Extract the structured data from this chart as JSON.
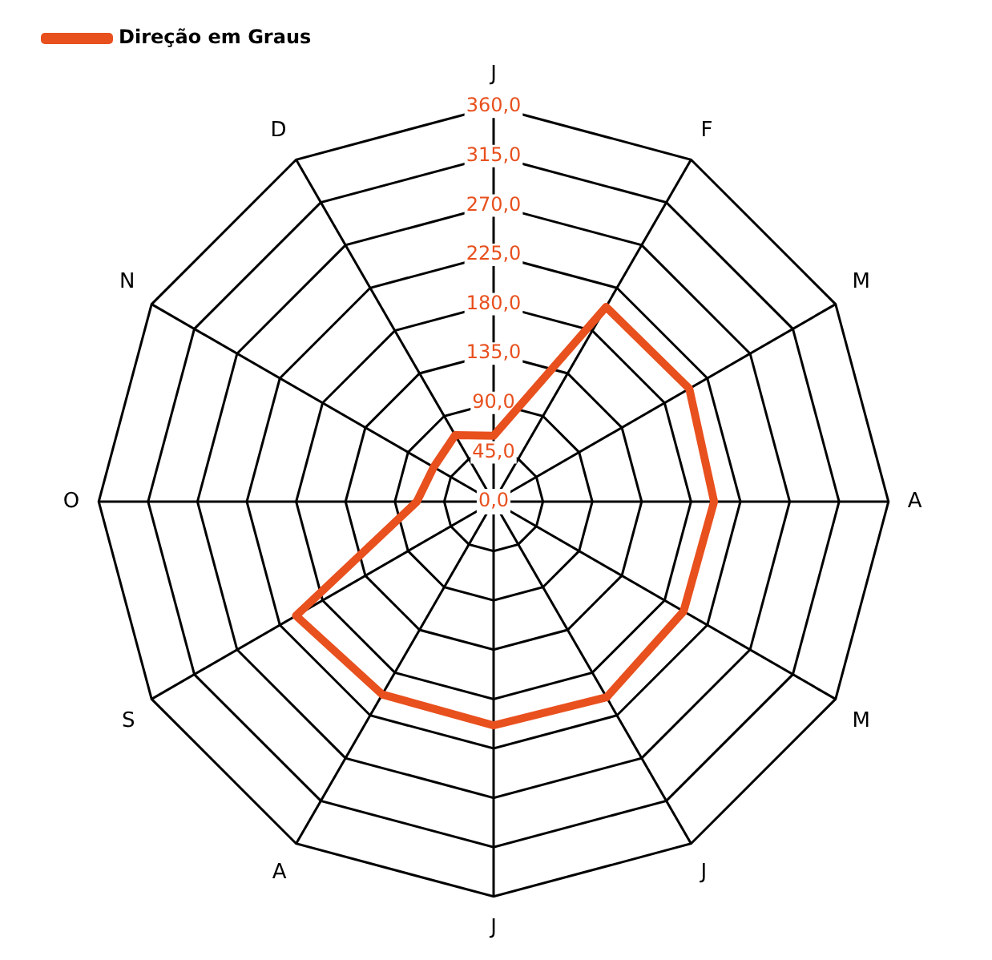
{
  "chart_data": {
    "type": "radar",
    "categories": [
      "J",
      "F",
      "M",
      "A",
      "M",
      "J",
      "J",
      "A",
      "S",
      "O",
      "N",
      "D"
    ],
    "series": [
      {
        "name": "Direção em Graus",
        "color": "#e8501e",
        "values": [
          60,
          205,
          206,
          201,
          200,
          206,
          204,
          203,
          208,
          70,
          63,
          70
        ]
      }
    ],
    "ylim": [
      0,
      360
    ],
    "yticks": [
      {
        "value": 0,
        "label": "0,0"
      },
      {
        "value": 45,
        "label": "45,0"
      },
      {
        "value": 90,
        "label": "90,0"
      },
      {
        "value": 135,
        "label": "135,0"
      },
      {
        "value": 180,
        "label": "180,0"
      },
      {
        "value": 225,
        "label": "225,0"
      },
      {
        "value": 270,
        "label": "270,0"
      },
      {
        "value": 315,
        "label": "315,0"
      },
      {
        "value": 360,
        "label": "360,0"
      }
    ],
    "grid": true,
    "legend": "top left",
    "marker": "none",
    "line_style": "solid"
  }
}
